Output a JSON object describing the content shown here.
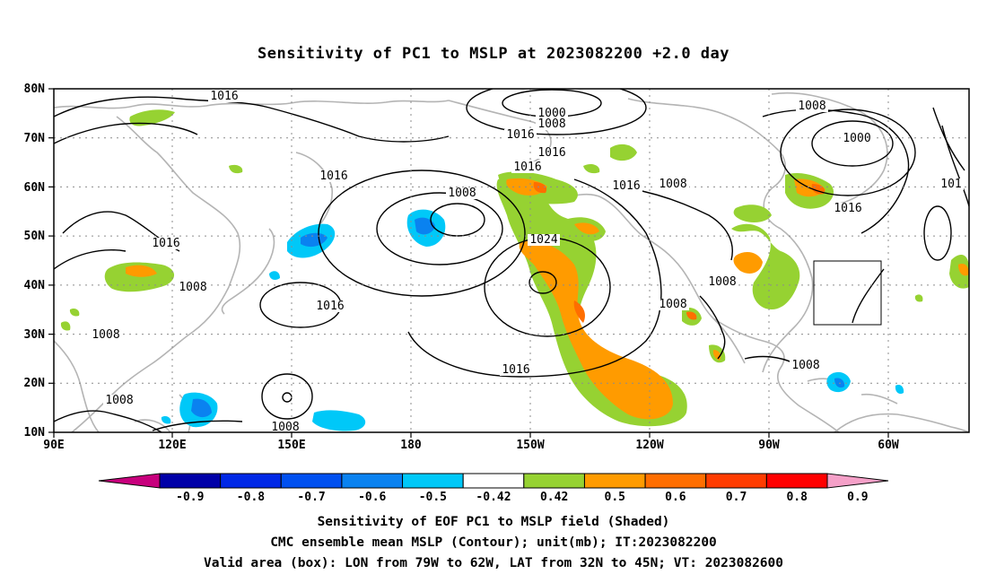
{
  "title": "Sensitivity of PC1 to MSLP at 2023082200 +2.0 day",
  "map": {
    "lat_labels": [
      "80N",
      "70N",
      "60N",
      "50N",
      "40N",
      "30N",
      "20N",
      "10N"
    ],
    "lon_labels": [
      "90E",
      "120E",
      "150E",
      "180",
      "150W",
      "120W",
      "90W",
      "60W"
    ],
    "contour_labels": [
      {
        "text": "1016"
      },
      {
        "text": "1000"
      },
      {
        "text": "1008"
      },
      {
        "text": "1016"
      },
      {
        "text": "1008"
      },
      {
        "text": "1000"
      },
      {
        "text": "1016"
      },
      {
        "text": "1016"
      },
      {
        "text": "1016"
      },
      {
        "text": "1016"
      },
      {
        "text": "1008"
      },
      {
        "text": "101"
      },
      {
        "text": "1016"
      },
      {
        "text": "1008"
      },
      {
        "text": "1016"
      },
      {
        "text": "1024"
      },
      {
        "text": "1008"
      },
      {
        "text": "1016"
      },
      {
        "text": "1008"
      },
      {
        "text": "1008"
      },
      {
        "text": "1016"
      },
      {
        "text": "1008"
      },
      {
        "text": "1008"
      },
      {
        "text": "1008"
      },
      {
        "text": "1008"
      }
    ],
    "valid_box": {
      "lon_from": "79W",
      "lon_to": "62W",
      "lat_from": "32N",
      "lat_to": "45N"
    }
  },
  "colorbar": {
    "labels": [
      "-0.9",
      "-0.8",
      "-0.7",
      "-0.6",
      "-0.5",
      "-0.42",
      "0.42",
      "0.5",
      "0.6",
      "0.7",
      "0.8",
      "0.9"
    ],
    "colors": [
      "#0000a8",
      "#0028e6",
      "#0050f0",
      "#0a82f0",
      "#00c8f8",
      "#ffffff",
      "#96d232",
      "#ff9b00",
      "#ff6e00",
      "#ff3c00",
      "#ff0000"
    ],
    "end_low_color": "#c8007d",
    "end_high_color": "#f5a0c8"
  },
  "footer": {
    "line1": "Sensitivity of EOF PC1 to MSLP field (Shaded)",
    "line2": "CMC ensemble mean MSLP (Contour); unit(mb); IT:2023082200",
    "line3": "Valid area (box): LON from 79W to 62W, LAT from 32N to 45N; VT: 2023082600"
  }
}
